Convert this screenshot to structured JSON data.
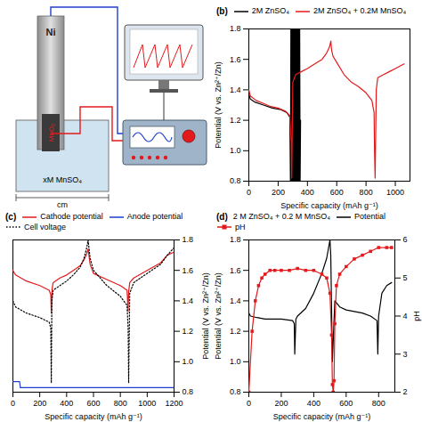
{
  "diagram": {
    "electrode": "Ni",
    "cathode": "MnO₂",
    "electrolyte": "xM MnSO₄",
    "dimension": "cm"
  },
  "chart_data": [
    {
      "type": "line",
      "panel": "(b)",
      "x_label": "Specific capacity (mAh g⁻¹)",
      "y_label": "Potential (V vs. Zn²⁺/Zn)",
      "xlim": [
        0,
        1100
      ],
      "xticks": [
        0,
        200,
        400,
        600,
        800,
        1000
      ],
      "ylim": [
        0.8,
        1.8
      ],
      "yticks": [
        0.8,
        {
          "value": 1,
          "label": "1.0"
        },
        1.2,
        1.4,
        1.6,
        1.8
      ],
      "legend": "top",
      "series": [
        {
          "name": "2M ZnSO₄",
          "color": "#000000",
          "x": [
            0,
            10,
            40,
            100,
            160,
            220,
            260,
            280,
            284,
            287,
            290,
            293,
            296,
            299,
            302,
            305,
            308,
            311,
            314,
            317,
            320,
            323,
            326,
            329,
            332,
            335,
            338,
            341,
            344,
            347,
            350,
            353
          ],
          "values": [
            1.37,
            1.34,
            1.32,
            1.3,
            1.28,
            1.27,
            1.25,
            1.22,
            0.8,
            1.8,
            0.8,
            1.8,
            0.8,
            1.8,
            0.8,
            1.8,
            0.8,
            1.8,
            0.8,
            1.8,
            0.8,
            1.8,
            0.8,
            1.8,
            0.8,
            1.8,
            0.8,
            1.8,
            0.8,
            1.8,
            0.8,
            1.2
          ]
        },
        {
          "name": "2M ZnSO₄ + 0.2M MnSO₄",
          "color": "#e31a1c",
          "x": [
            0,
            10,
            50,
            100,
            150,
            200,
            250,
            280,
            290,
            293,
            300,
            320,
            360,
            400,
            450,
            500,
            530,
            550,
            560,
            565,
            575,
            600,
            650,
            700,
            750,
            800,
            840,
            855,
            858,
            862,
            870,
            880,
            920,
            960,
            1000,
            1040,
            1060
          ],
          "values": [
            1.4,
            1.36,
            1.33,
            1.31,
            1.29,
            1.28,
            1.26,
            1.23,
            1.05,
            0.82,
            1.45,
            1.5,
            1.52,
            1.54,
            1.57,
            1.6,
            1.64,
            1.68,
            1.72,
            1.66,
            1.62,
            1.58,
            1.5,
            1.45,
            1.42,
            1.38,
            1.33,
            1.25,
            1.0,
            0.82,
            1.4,
            1.48,
            1.5,
            1.52,
            1.54,
            1.56,
            1.57
          ]
        }
      ]
    },
    {
      "type": "line",
      "panel": "(c)",
      "x_label": "Specific capacity (mAh g⁻¹)",
      "y2_label": "Potential (V vs. Zn²⁺/Zn)",
      "xlim": [
        0,
        1200
      ],
      "xticks": [
        0,
        200,
        400,
        600,
        800,
        1000,
        1200
      ],
      "y2lim": [
        0.8,
        1.8
      ],
      "y2ticks": [
        0.8,
        {
          "value": 1,
          "label": "1.0"
        },
        1.2,
        1.4,
        1.6,
        1.8
      ],
      "legend": "top",
      "series": [
        {
          "name": "Cathode potential",
          "color": "#e31a1c",
          "axis": "y2",
          "x": [
            0,
            20,
            100,
            200,
            270,
            282,
            286,
            292,
            300,
            350,
            400,
            450,
            500,
            530,
            550,
            560,
            575,
            600,
            700,
            800,
            850,
            858,
            862,
            870,
            900,
            1000,
            1100,
            1150,
            1200
          ],
          "values": [
            1.6,
            1.57,
            1.53,
            1.5,
            1.47,
            1.44,
            1.32,
            1.48,
            1.52,
            1.55,
            1.57,
            1.6,
            1.63,
            1.67,
            1.71,
            1.74,
            1.64,
            1.58,
            1.54,
            1.5,
            1.47,
            1.33,
            1.46,
            1.52,
            1.55,
            1.6,
            1.65,
            1.7,
            1.72
          ]
        },
        {
          "name": "Anode potential",
          "color": "#1f3fd1",
          "axis": "y2",
          "x": [
            0,
            50,
            55,
            1200
          ],
          "values": [
            0.87,
            0.87,
            0.83,
            0.83
          ]
        },
        {
          "name": "Cell voltage",
          "color": "#000000",
          "axis": "y2",
          "line_style": "dotted",
          "x": [
            0,
            20,
            100,
            200,
            270,
            282,
            286,
            290,
            300,
            350,
            400,
            450,
            500,
            530,
            550,
            560,
            575,
            600,
            700,
            800,
            850,
            858,
            862,
            870,
            900,
            1000,
            1100,
            1150,
            1200
          ],
          "values": [
            1.4,
            1.36,
            1.32,
            1.29,
            1.26,
            1.22,
            0.86,
            1.4,
            1.47,
            1.5,
            1.53,
            1.57,
            1.62,
            1.68,
            1.75,
            1.8,
            1.68,
            1.6,
            1.5,
            1.43,
            1.37,
            1.22,
            0.86,
            1.45,
            1.52,
            1.58,
            1.64,
            1.7,
            1.75
          ]
        }
      ]
    },
    {
      "type": "line",
      "panel": "(d)",
      "title": "2 M ZnSO₄ + 0.2 M MnSO₄",
      "x_label": "Specific capacity (mAh g⁻¹)",
      "y_label": "Potential (V vs. Zn²⁺/Zn)",
      "y2_label": "pH",
      "xlim": [
        0,
        900
      ],
      "xticks": [
        0,
        200,
        400,
        600,
        800
      ],
      "ylim": [
        0.8,
        1.8
      ],
      "yticks": [
        0.8,
        {
          "value": 1,
          "label": "1.0"
        },
        1.2,
        1.4,
        1.6,
        1.8
      ],
      "y2lim": [
        2,
        6
      ],
      "y2ticks": [
        2,
        3,
        4,
        5,
        6
      ],
      "legend": "top",
      "series": [
        {
          "name": "Potential",
          "color": "#000000",
          "x": [
            0,
            10,
            50,
            100,
            200,
            270,
            280,
            283,
            290,
            300,
            350,
            400,
            450,
            480,
            500,
            505,
            515,
            530,
            560,
            600,
            650,
            700,
            750,
            790,
            795,
            800,
            820,
            850,
            880
          ],
          "values": [
            1.32,
            1.3,
            1.29,
            1.28,
            1.28,
            1.27,
            1.25,
            1.05,
            1.28,
            1.3,
            1.35,
            1.45,
            1.58,
            1.68,
            1.8,
            1.7,
            1.0,
            1.4,
            1.36,
            1.34,
            1.33,
            1.32,
            1.3,
            1.27,
            1.05,
            1.3,
            1.45,
            1.5,
            1.52
          ]
        },
        {
          "name": "pH",
          "color": "#e31a1c",
          "axis": "y2",
          "marker": "square",
          "x": [
            0,
            20,
            40,
            60,
            80,
            100,
            130,
            160,
            200,
            250,
            300,
            350,
            400,
            450,
            480,
            500,
            510,
            515,
            520,
            525,
            530,
            540,
            560,
            600,
            650,
            700,
            750,
            800,
            850,
            880
          ],
          "values": [
            2.0,
            3.6,
            4.4,
            4.8,
            5.0,
            5.1,
            5.2,
            5.2,
            5.2,
            5.2,
            5.25,
            5.2,
            5.2,
            5.1,
            5.0,
            4.6,
            3.5,
            2.2,
            2.0,
            2.3,
            3.8,
            4.8,
            5.1,
            5.3,
            5.5,
            5.6,
            5.7,
            5.8,
            5.8,
            5.8
          ]
        }
      ]
    }
  ]
}
